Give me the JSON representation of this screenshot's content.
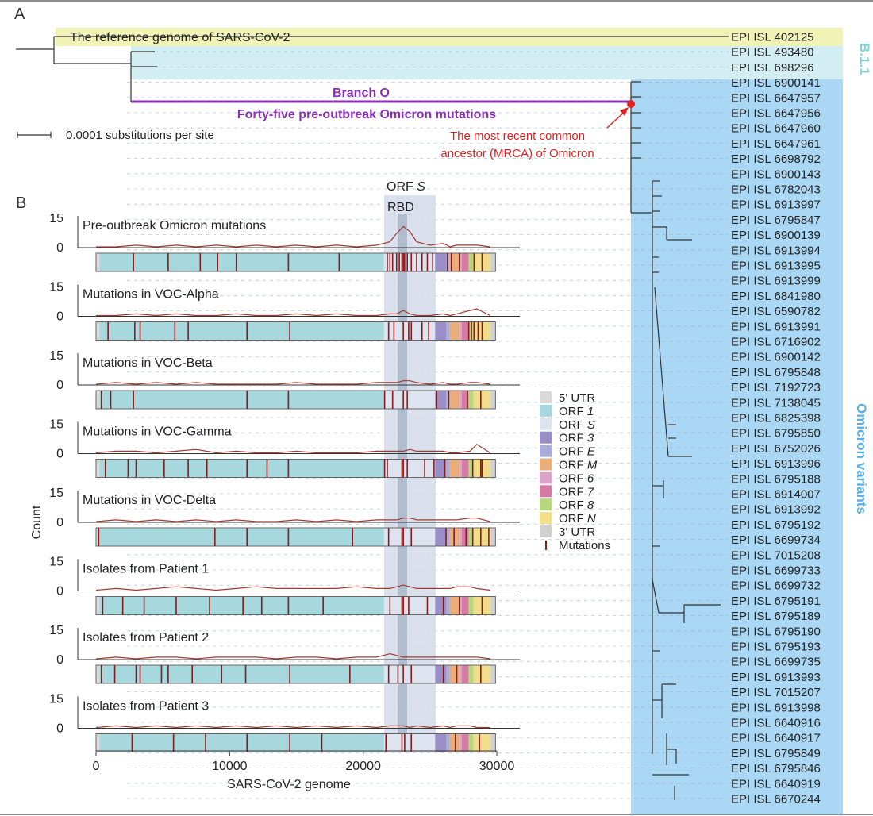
{
  "figure": {
    "panelA": {
      "label": "A",
      "reference_label": "The reference genome of SARS-CoV-2",
      "lineage_b11": "B.1.1",
      "lineage_omicron": "Omicron variants",
      "branch_title": "Branch O",
      "branch_sub": "Forty-five pre-outbreak Omicron mutations",
      "mrca_line1": "The most recent common",
      "mrca_line2": "ancestor (MRCA) of Omicron",
      "scale_label": "0.0001 substitutions per site",
      "tips": [
        "EPI ISL 402125",
        "EPI ISL 493480",
        "EPI ISL 698296",
        "EPI ISL 6900141",
        "EPI ISL 6647957",
        "EPI ISL 6647956",
        "EPI ISL 6647960",
        "EPI ISL 6647961",
        "EPI ISL 6698792",
        "EPI ISL 6900143",
        "EPI ISL 6782043",
        "EPI ISL 6913997",
        "EPI ISL 6795847",
        "EPI ISL 6900139",
        "EPI ISL 6913994",
        "EPI ISL 6913995",
        "EPI ISL 6913999",
        "EPI ISL 6841980",
        "EPI ISL 6590782",
        "EPI ISL 6913991",
        "EPI ISL 6716902",
        "EPI ISL 6900142",
        "EPI ISL 6795848",
        "EPI ISL 7192723",
        "EPI ISL 7138045",
        "EPI ISL 6825398",
        "EPI ISL 6795850",
        "EPI ISL 6752026",
        "EPI ISL 6913996",
        "EPI ISL 6795188",
        "EPI ISL 6914007",
        "EPI ISL 6913992",
        "EPI ISL 6795192",
        "EPI ISL 6699734",
        "EPI ISL 7015208",
        "EPI ISL 6699733",
        "EPI ISL 6699732",
        "EPI ISL 6795191",
        "EPI ISL 6795189",
        "EPI ISL 6795190",
        "EPI ISL 6795193",
        "EPI ISL 6699735",
        "EPI ISL 6913993",
        "EPI ISL 7015207",
        "EPI ISL 6913998",
        "EPI ISL 6640916",
        "EPI ISL 6640917",
        "EPI ISL 6795849",
        "EPI ISL 6795846",
        "EPI ISL 6640919",
        "EPI ISL 6670244"
      ]
    },
    "panelB": {
      "label": "B",
      "orf_s_label": "ORF S",
      "rbd_label": "RBD",
      "y_axis_label": "Count",
      "x_axis_label": "SARS-CoV-2 genome",
      "y_ticks": [
        "15",
        "0"
      ],
      "x_ticks": [
        "0",
        "10000",
        "20000",
        "30000"
      ],
      "tracks": [
        "Pre-outbreak Omicron mutations",
        "Mutations in VOC-Alpha",
        "Mutations in VOC-Beta",
        "Mutations in VOC-Gamma",
        "Mutations in VOC-Delta",
        "Isolates from Patient 1",
        "Isolates from Patient 2",
        "Isolates from Patient 3"
      ],
      "legend": [
        {
          "label": "5' UTR",
          "color": "#d9d9d9"
        },
        {
          "label": "ORF 1",
          "color": "#a6d8dd"
        },
        {
          "label": "ORF S",
          "color": "#dde3ef"
        },
        {
          "label": "ORF 3",
          "color": "#9a8ec7"
        },
        {
          "label": "ORF E",
          "color": "#a9acd9"
        },
        {
          "label": "ORF M",
          "color": "#e8ad78"
        },
        {
          "label": "ORF 6",
          "color": "#dba3c8"
        },
        {
          "label": "ORF 7",
          "color": "#d47aa3"
        },
        {
          "label": "ORF 8",
          "color": "#b6d77c"
        },
        {
          "label": "ORF N",
          "color": "#f1dd8a"
        },
        {
          "label": "3' UTR",
          "color": "#d0d0d0"
        },
        {
          "label": "Mutations",
          "color": "#8b1a1a"
        }
      ]
    }
  },
  "chart_data": {
    "type": "line",
    "xlabel": "SARS-CoV-2 genome",
    "ylabel": "Count",
    "xlim": [
      0,
      30000
    ],
    "ylim": [
      0,
      15
    ],
    "x": [
      0,
      1500,
      3000,
      4500,
      6000,
      7500,
      9000,
      10500,
      12000,
      13500,
      15000,
      16500,
      18000,
      19500,
      21000,
      22000,
      22500,
      23000,
      23500,
      24000,
      25000,
      26000,
      26500,
      27000,
      28000,
      28500,
      29500
    ],
    "series": [
      {
        "name": "Pre-outbreak Omicron mutations",
        "values": [
          0,
          0,
          1,
          0,
          1,
          0,
          1,
          0,
          1,
          0,
          1,
          0,
          1,
          0,
          1,
          3,
          8,
          12,
          9,
          3,
          1,
          2,
          0,
          1,
          1,
          1,
          0
        ]
      },
      {
        "name": "Mutations in VOC-Alpha",
        "values": [
          0,
          0,
          1,
          0,
          1,
          0,
          0,
          1,
          0,
          0,
          1,
          0,
          1,
          0,
          0,
          1,
          1,
          3,
          1,
          0,
          0,
          1,
          0,
          1,
          3,
          4,
          0
        ]
      },
      {
        "name": "Mutations in VOC-Beta",
        "values": [
          0,
          1,
          0,
          1,
          0,
          1,
          0,
          0,
          0,
          0,
          1,
          0,
          0,
          0,
          1,
          1,
          1,
          2,
          2,
          1,
          0,
          1,
          0,
          0,
          1,
          1,
          0
        ]
      },
      {
        "name": "Mutations in VOC-Gamma",
        "values": [
          0,
          1,
          1,
          0,
          1,
          2,
          0,
          1,
          0,
          0,
          1,
          0,
          0,
          0,
          1,
          1,
          1,
          1,
          2,
          1,
          1,
          1,
          0,
          0,
          1,
          5,
          0
        ]
      },
      {
        "name": "Mutations in VOC-Delta",
        "values": [
          0,
          1,
          0,
          1,
          0,
          1,
          0,
          1,
          0,
          0,
          1,
          0,
          1,
          0,
          1,
          1,
          1,
          2,
          2,
          1,
          1,
          1,
          1,
          1,
          2,
          2,
          0
        ]
      },
      {
        "name": "Isolates from Patient 1",
        "values": [
          0,
          1,
          0,
          1,
          2,
          1,
          0,
          1,
          2,
          1,
          1,
          1,
          1,
          2,
          1,
          1,
          2,
          3,
          2,
          1,
          1,
          1,
          1,
          2,
          2,
          1,
          0
        ]
      },
      {
        "name": "Isolates from Patient 2",
        "values": [
          0,
          1,
          0,
          1,
          1,
          0,
          1,
          1,
          1,
          0,
          1,
          1,
          0,
          1,
          1,
          3,
          2,
          1,
          1,
          1,
          1,
          1,
          1,
          1,
          1,
          1,
          0
        ]
      },
      {
        "name": "Isolates from Patient 3",
        "values": [
          0,
          1,
          0,
          1,
          0,
          1,
          0,
          1,
          0,
          1,
          0,
          1,
          0,
          1,
          0,
          1,
          1,
          1,
          0,
          1,
          0,
          1,
          0,
          1,
          1,
          0,
          0
        ]
      }
    ]
  }
}
